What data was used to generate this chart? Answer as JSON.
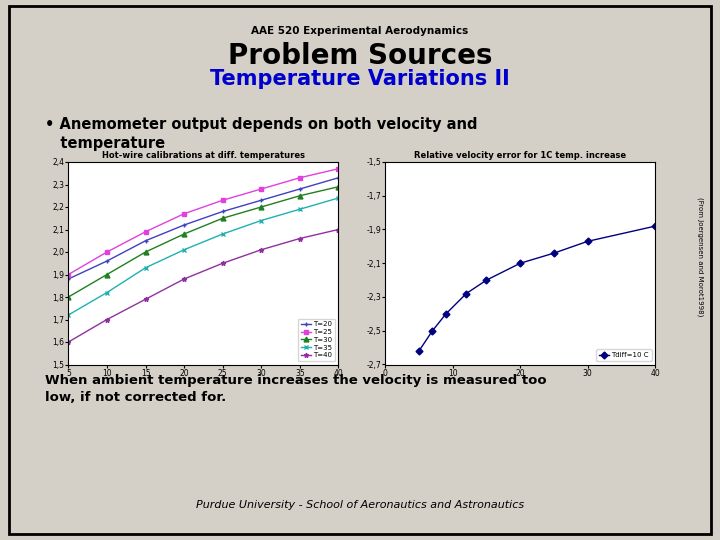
{
  "bg_color": "#d4d0c8",
  "border_color": "#000000",
  "slide_title_small": "AAE 520 Experimental Aerodynamics",
  "slide_title_large": "Problem Sources",
  "slide_title_sub": "Temperature Variations II",
  "slide_title_sub_color": "#0000cc",
  "bullet_text_line1": "• Anemometer output depends on both velocity and",
  "bullet_text_line2": "   temperature",
  "bottom_text_line1": "When ambient temperature increases the velocity is measured too",
  "bottom_text_line2": "low, if not corrected for.",
  "footer_text": "Purdue University - School of Aeronautics and Astronautics",
  "side_text": "(From Joergensen and Morot1998)",
  "chart1_title": "Hot-wire calibrations at diff. temperatures",
  "chart1_xlabel_vals": [
    5,
    10,
    15,
    20,
    25,
    30,
    35,
    40
  ],
  "chart1_ylim": [
    1.5,
    2.4
  ],
  "chart1_xlim": [
    5,
    40
  ],
  "chart1_yticks": [
    1.5,
    1.6,
    1.7,
    1.8,
    1.9,
    2.0,
    2.1,
    2.2,
    2.3,
    2.4
  ],
  "chart1_series": [
    {
      "label": "T=20",
      "color": "#4040c0",
      "marker": "+",
      "x": [
        5,
        10,
        15,
        20,
        25,
        30,
        35,
        40
      ],
      "y": [
        1.88,
        1.96,
        2.05,
        2.12,
        2.18,
        2.23,
        2.28,
        2.33
      ]
    },
    {
      "label": "T=25",
      "color": "#e040e0",
      "marker": "s",
      "x": [
        5,
        10,
        15,
        20,
        25,
        30,
        35,
        40
      ],
      "y": [
        1.9,
        2.0,
        2.09,
        2.17,
        2.23,
        2.28,
        2.33,
        2.37
      ]
    },
    {
      "label": "T=30",
      "color": "#208020",
      "marker": "^",
      "x": [
        5,
        10,
        15,
        20,
        25,
        30,
        35,
        40
      ],
      "y": [
        1.8,
        1.9,
        2.0,
        2.08,
        2.15,
        2.2,
        2.25,
        2.29
      ]
    },
    {
      "label": "T=35",
      "color": "#20b0b0",
      "marker": "x",
      "x": [
        5,
        10,
        15,
        20,
        25,
        30,
        35,
        40
      ],
      "y": [
        1.72,
        1.82,
        1.93,
        2.01,
        2.08,
        2.14,
        2.19,
        2.24
      ]
    },
    {
      "label": "T=40",
      "color": "#9030a0",
      "marker": "*",
      "x": [
        5,
        10,
        15,
        20,
        25,
        30,
        35,
        40
      ],
      "y": [
        1.6,
        1.7,
        1.79,
        1.88,
        1.95,
        2.01,
        2.06,
        2.1
      ]
    }
  ],
  "chart2_title": "Relative velocity error for 1C temp. increase",
  "chart2_xlabel_vals": [
    0,
    10,
    20,
    30,
    40
  ],
  "chart2_ylim": [
    -2.7,
    -1.5
  ],
  "chart2_xlim": [
    0,
    40
  ],
  "chart2_yticks": [
    -2.7,
    -2.5,
    -2.3,
    -2.1,
    -1.9,
    -1.7,
    -1.5
  ],
  "chart2_series": [
    {
      "label": "Tdiff=10 C",
      "color": "#000080",
      "marker": "D",
      "x": [
        5,
        7,
        9,
        12,
        15,
        20,
        25,
        30,
        40
      ],
      "y": [
        -2.62,
        -2.5,
        -2.4,
        -2.28,
        -2.2,
        -2.1,
        -2.04,
        -1.97,
        -1.88
      ]
    }
  ]
}
